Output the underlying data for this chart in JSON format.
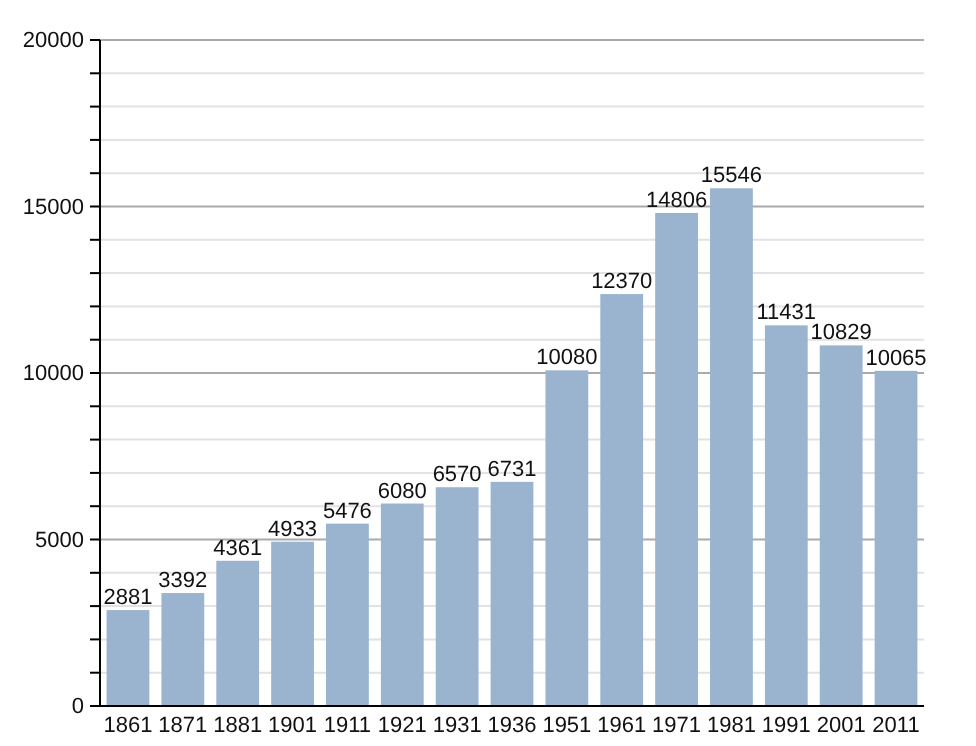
{
  "chart_data": {
    "type": "bar",
    "categories": [
      "1861",
      "1871",
      "1881",
      "1901",
      "1911",
      "1921",
      "1931",
      "1936",
      "1951",
      "1961",
      "1971",
      "1981",
      "1991",
      "2001",
      "2011"
    ],
    "values": [
      2881,
      3392,
      4361,
      4933,
      5476,
      6080,
      6570,
      6731,
      10080,
      12370,
      14806,
      15546,
      11431,
      10829,
      10065
    ],
    "color": "#9ab3cf",
    "ylim": [
      0,
      20000
    ],
    "yticks": [
      0,
      {
        "value": 1000,
        "label": null
      },
      {
        "value": 2000,
        "label": null
      },
      {
        "value": 3000,
        "label": null
      },
      {
        "value": 4000,
        "label": null
      },
      5000,
      {
        "value": 6000,
        "label": null
      },
      {
        "value": 7000,
        "label": null
      },
      {
        "value": 8000,
        "label": null
      },
      {
        "value": 9000,
        "label": null
      },
      10000,
      {
        "value": 11000,
        "label": null
      },
      {
        "value": 12000,
        "label": null
      },
      {
        "value": 13000,
        "label": null
      },
      {
        "value": 14000,
        "label": null
      },
      15000,
      {
        "value": 16000,
        "label": null
      },
      {
        "value": 17000,
        "label": null
      },
      {
        "value": 18000,
        "label": null
      },
      {
        "value": 19000,
        "label": null
      },
      20000
    ],
    "grid": true,
    "data_labels": true
  }
}
